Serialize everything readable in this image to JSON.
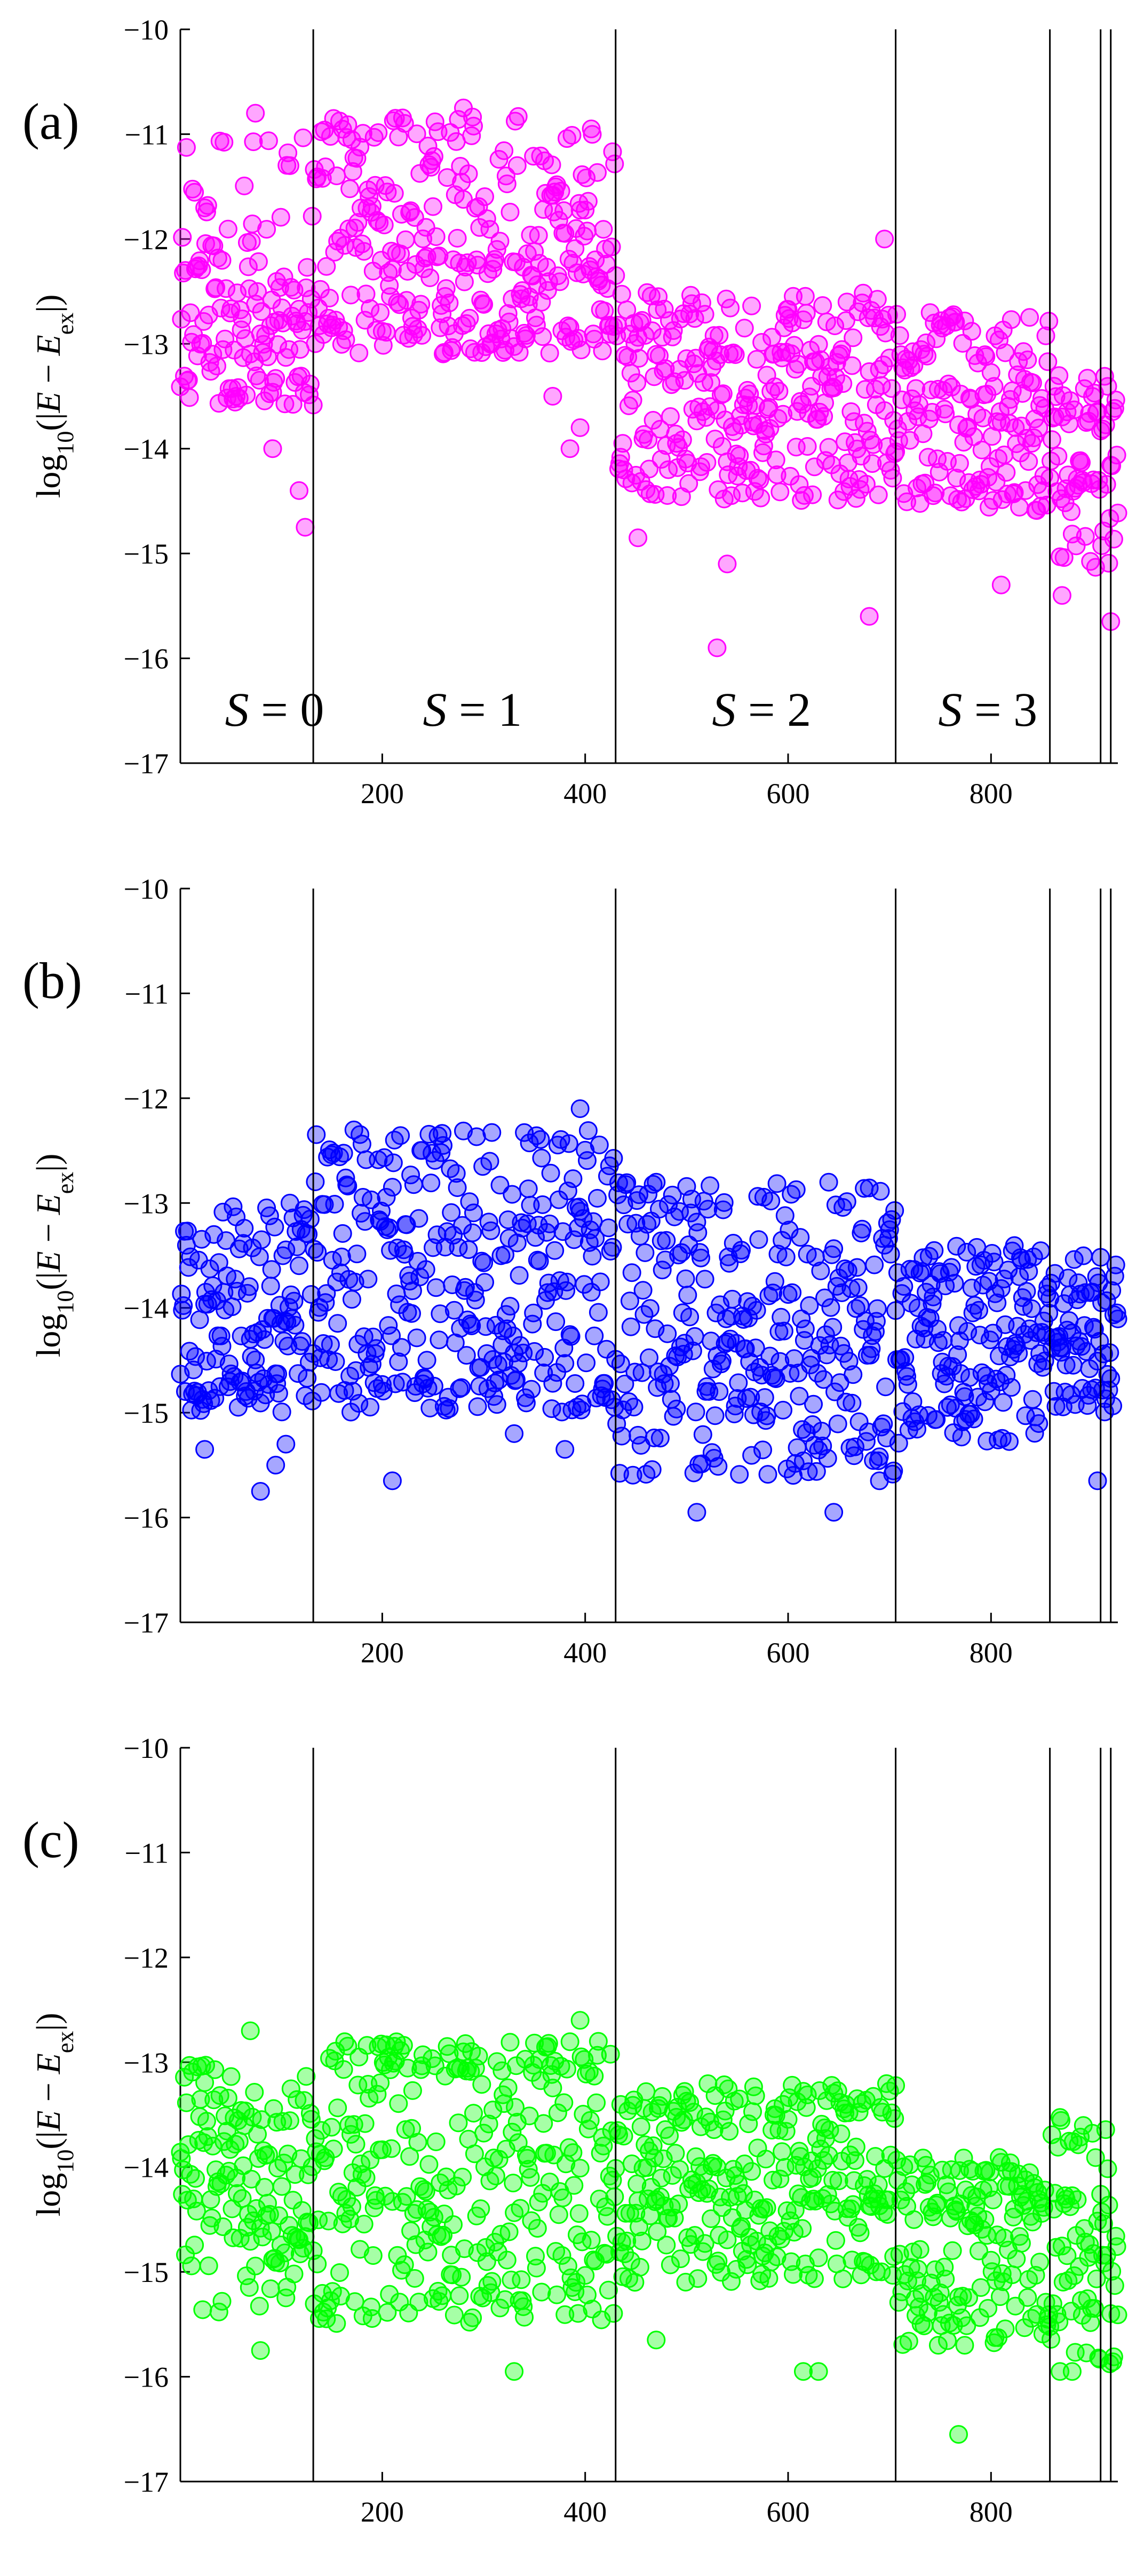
{
  "chart_data": [
    {
      "type": "scatter",
      "panel_label": "(a)",
      "color": "#ff00ff",
      "ylabel": "log10(|E − Eex|)",
      "ylabel_parts": {
        "prefix": "log",
        "sub": "10",
        "open": "(|",
        "E": "E",
        "minus": " − ",
        "Eex": "E",
        "ex": "ex",
        "close": "|)"
      },
      "xlim": [
        1,
        925
      ],
      "ylim": [
        -17,
        -10
      ],
      "xticks": [
        200,
        400,
        600,
        800
      ],
      "xtick_labels": [
        "200",
        "400",
        "600",
        "800"
      ],
      "yticks": [
        -17,
        -16,
        -15,
        -14,
        -13,
        -12,
        -11,
        -10
      ],
      "ytick_labels": [
        "−17",
        "−16",
        "−15",
        "−14",
        "−13",
        "−12",
        "−11",
        "−10"
      ],
      "sector_boundaries": [
        132,
        430,
        706,
        858,
        908,
        918
      ],
      "sector_labels": [
        {
          "S": "S",
          "eq": " = 0",
          "x": 45
        },
        {
          "S": "S",
          "eq": " = 1",
          "x": 240
        },
        {
          "S": "S",
          "eq": " = 2",
          "x": 525
        },
        {
          "S": "S",
          "eq": " = 3",
          "x": 748
        }
      ],
      "segments": [
        {
          "x": [
            1,
            132
          ],
          "band": [
            -13.6,
            -11.0
          ],
          "center": -12.8,
          "outliers": [
            [
              92,
              -14.0
            ],
            [
              118,
              -14.4
            ],
            [
              124,
              -14.75
            ],
            [
              75,
              -10.8
            ]
          ]
        },
        {
          "x": [
            133,
            430
          ],
          "band": [
            -13.1,
            -10.8
          ],
          "center": -12.1,
          "outliers": [
            [
              368,
              -13.5
            ],
            [
              385,
              -14.0
            ],
            [
              395,
              -13.8
            ],
            [
              280,
              -10.75
            ]
          ]
        },
        {
          "x": [
            431,
            706
          ],
          "band": [
            -14.5,
            -12.5
          ],
          "center": -13.5,
          "outliers": [
            [
              530,
              -15.9
            ],
            [
              680,
              -15.6
            ],
            [
              540,
              -15.1
            ],
            [
              452,
              -14.85
            ],
            [
              695,
              -12.0
            ]
          ]
        },
        {
          "x": [
            707,
            858
          ],
          "band": [
            -14.6,
            -12.7
          ],
          "center": -13.6,
          "outliers": [
            [
              810,
              -15.3
            ]
          ]
        },
        {
          "x": [
            859,
            925
          ],
          "band": [
            -15.2,
            -13.3
          ],
          "center": -14.2,
          "outliers": [
            [
              918,
              -15.65
            ],
            [
              870,
              -15.4
            ]
          ]
        }
      ]
    },
    {
      "type": "scatter",
      "panel_label": "(b)",
      "color": "#0000ff",
      "ylabel": "log10(|E − Eex|)",
      "ylabel_parts": {
        "prefix": "log",
        "sub": "10",
        "open": "(|",
        "E": "E",
        "minus": " − ",
        "Eex": "E",
        "ex": "ex",
        "close": "|)"
      },
      "xlim": [
        1,
        925
      ],
      "ylim": [
        -17,
        -10
      ],
      "xticks": [
        200,
        400,
        600,
        800
      ],
      "xtick_labels": [
        "200",
        "400",
        "600",
        "800"
      ],
      "yticks": [
        -17,
        -16,
        -15,
        -14,
        -13,
        -12,
        -11,
        -10
      ],
      "ytick_labels": [
        "−17",
        "−16",
        "−15",
        "−14",
        "−13",
        "−12",
        "−11",
        "−10"
      ],
      "sector_boundaries": [
        132,
        430,
        706,
        858,
        908,
        918
      ],
      "sector_labels": [],
      "segments": [
        {
          "x": [
            1,
            132
          ],
          "band": [
            -15.0,
            -13.0
          ],
          "center": -14.1,
          "outliers": [
            [
              80,
              -15.75
            ],
            [
              95,
              -15.5
            ],
            [
              105,
              -15.3
            ],
            [
              25,
              -15.35
            ]
          ]
        },
        {
          "x": [
            133,
            430
          ],
          "band": [
            -15.0,
            -12.3
          ],
          "center": -13.8,
          "outliers": [
            [
              210,
              -15.65
            ],
            [
              330,
              -15.2
            ],
            [
              380,
              -15.35
            ],
            [
              395,
              -12.1
            ]
          ]
        },
        {
          "x": [
            431,
            706
          ],
          "band": [
            -15.6,
            -12.8
          ],
          "center": -14.2,
          "outliers": [
            [
              510,
              -15.95
            ],
            [
              645,
              -15.95
            ],
            [
              690,
              -15.65
            ]
          ]
        },
        {
          "x": [
            707,
            858
          ],
          "band": [
            -15.3,
            -13.4
          ],
          "center": -14.3,
          "outliers": []
        },
        {
          "x": [
            859,
            925
          ],
          "band": [
            -15.0,
            -13.5
          ],
          "center": -14.4,
          "outliers": [
            [
              905,
              -15.65
            ]
          ]
        }
      ]
    },
    {
      "type": "scatter",
      "panel_label": "(c)",
      "color": "#00ff00",
      "ylabel": "log10(|E − Eex|)",
      "ylabel_parts": {
        "prefix": "log",
        "sub": "10",
        "open": "(|",
        "E": "E",
        "minus": " − ",
        "Eex": "E",
        "ex": "ex",
        "close": "|)"
      },
      "xlim": [
        1,
        925
      ],
      "ylim": [
        -17,
        -10
      ],
      "xticks": [
        200,
        400,
        600,
        800
      ],
      "xtick_labels": [
        "200",
        "400",
        "600",
        "800"
      ],
      "yticks": [
        -17,
        -16,
        -15,
        -14,
        -13,
        -12,
        -11,
        -10
      ],
      "ytick_labels": [
        "−17",
        "−16",
        "−15",
        "−14",
        "−13",
        "−12",
        "−11",
        "−10"
      ],
      "sector_boundaries": [
        132,
        430,
        706,
        858,
        908,
        918
      ],
      "sector_labels": [],
      "segments": [
        {
          "x": [
            1,
            132
          ],
          "band": [
            -15.4,
            -13.0
          ],
          "center": -14.2,
          "outliers": [
            [
              80,
              -15.75
            ],
            [
              70,
              -12.7
            ]
          ]
        },
        {
          "x": [
            133,
            430
          ],
          "band": [
            -15.5,
            -12.8
          ],
          "center": -14.1,
          "outliers": [
            [
              330,
              -15.95
            ],
            [
              395,
              -12.6
            ]
          ]
        },
        {
          "x": [
            431,
            706
          ],
          "band": [
            -15.1,
            -13.2
          ],
          "center": -14.1,
          "outliers": [
            [
              615,
              -15.95
            ],
            [
              630,
              -15.95
            ],
            [
              470,
              -15.65
            ]
          ]
        },
        {
          "x": [
            707,
            858
          ],
          "band": [
            -15.7,
            -13.9
          ],
          "center": -14.8,
          "outliers": [
            [
              768,
              -16.55
            ]
          ]
        },
        {
          "x": [
            859,
            925
          ],
          "band": [
            -15.9,
            -13.5
          ],
          "center": -14.7,
          "outliers": [
            [
              880,
              -15.95
            ],
            [
              868,
              -15.95
            ]
          ]
        }
      ]
    }
  ]
}
